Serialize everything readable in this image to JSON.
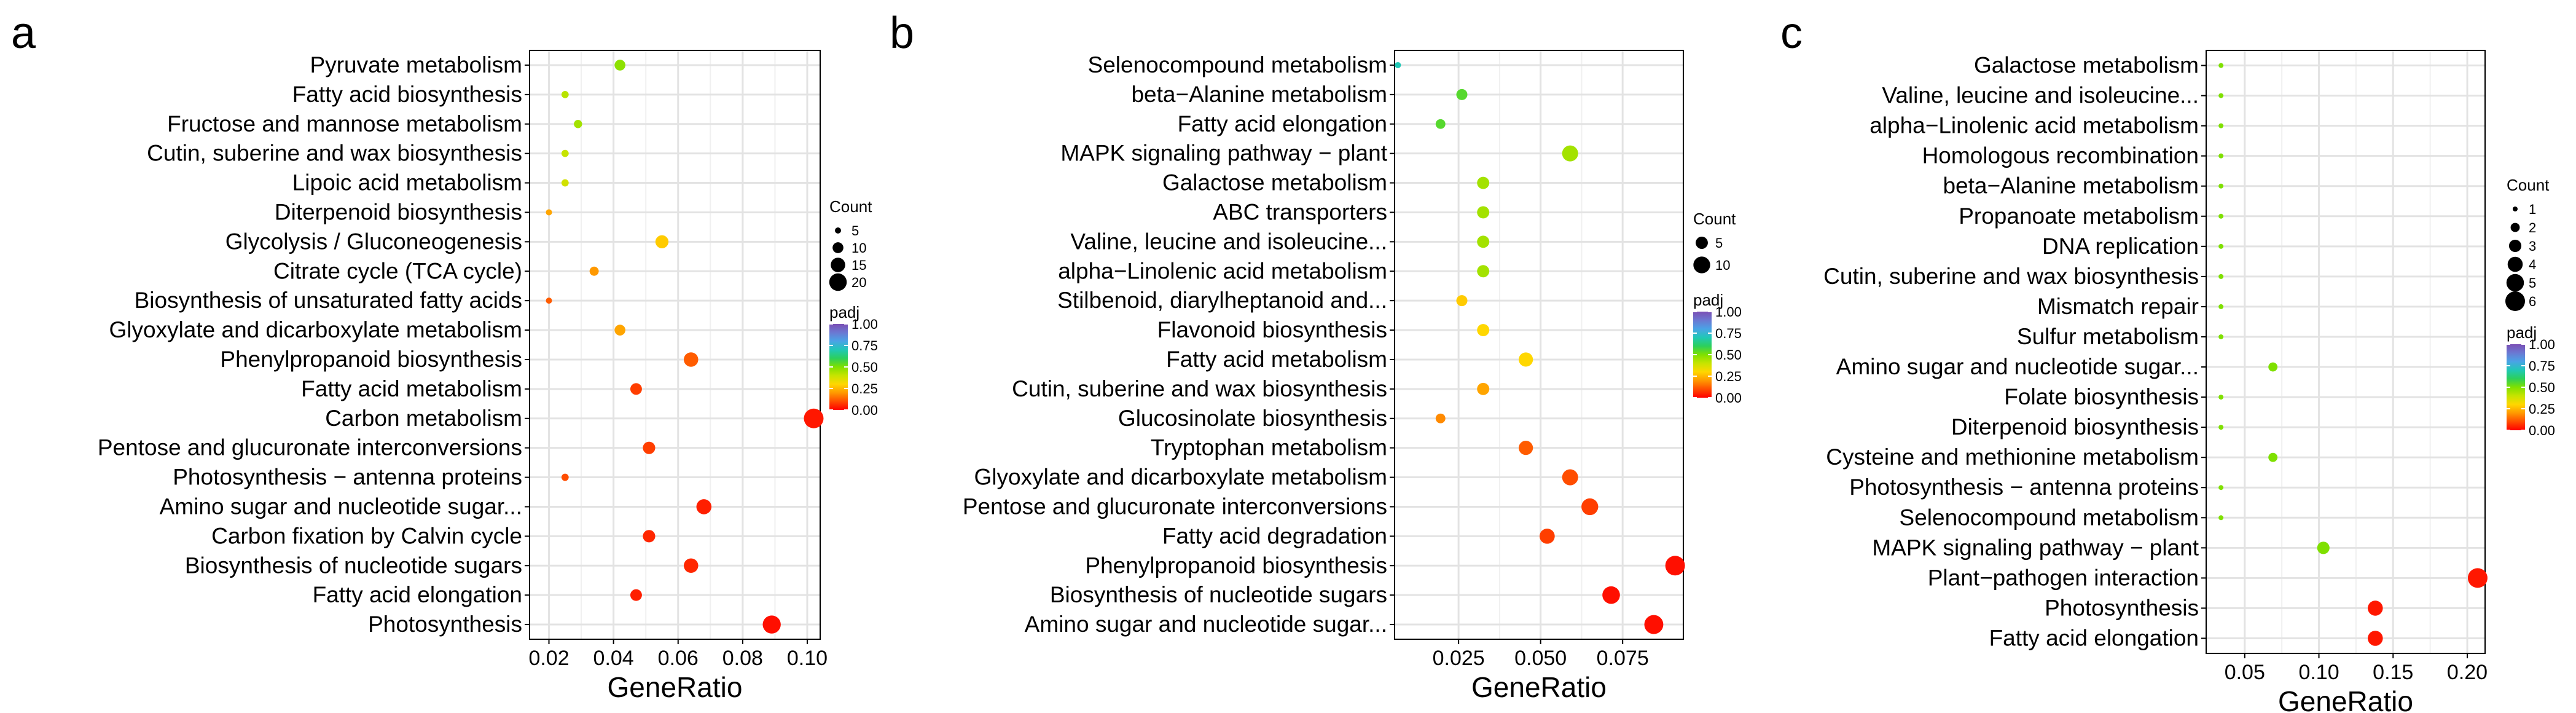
{
  "colorbar": {
    "title": "padj",
    "ticks": [
      "1.00",
      "0.75",
      "0.50",
      "0.25",
      "0.00"
    ],
    "colors": [
      "#ff0000",
      "#ff4d00",
      "#ff9900",
      "#ffd700",
      "#c6e400",
      "#7fe000",
      "#2ccf5c",
      "#20c8b6",
      "#4aa3e6",
      "#6b78d2",
      "#7b4fb5"
    ]
  },
  "chart_data": [
    {
      "type": "scatter",
      "panel": "a",
      "xlabel": "GeneRatio",
      "xlim": [
        0.014,
        0.104
      ],
      "xticks": [
        0.02,
        0.04,
        0.06,
        0.08,
        0.1
      ],
      "xtick_labels": [
        "0.02",
        "0.04",
        "0.06",
        "0.08",
        "0.10"
      ],
      "size_legend": {
        "title": "Count",
        "values": [
          5,
          10,
          15,
          20
        ],
        "labels": [
          "5",
          "10",
          "15",
          "20"
        ]
      },
      "categories": [
        "Pyruvate metabolism",
        "Fatty acid biosynthesis",
        "Fructose and mannose metabolism",
        "Cutin, suberine and wax biosynthesis",
        "Lipoic acid metabolism",
        "Diterpenoid biosynthesis",
        "Glycolysis / Gluconeogenesis",
        "Citrate cycle (TCA cycle)",
        "Biosynthesis of unsaturated fatty acids",
        "Glyoxylate and dicarboxylate metabolism",
        "Phenylpropanoid biosynthesis",
        "Fatty acid metabolism",
        "Carbon metabolism",
        "Pentose and glucuronate interconversions",
        "Photosynthesis − antenna proteins",
        "Amino sugar and nucleotide sugar...",
        "Carbon fixation by Calvin cycle",
        "Biosynthesis of nucleotide sugars",
        "Fatty acid elongation",
        "Photosynthesis"
      ],
      "gene_ratio": [
        0.042,
        0.025,
        0.029,
        0.025,
        0.025,
        0.02,
        0.055,
        0.034,
        0.02,
        0.042,
        0.064,
        0.047,
        0.102,
        0.051,
        0.025,
        0.068,
        0.051,
        0.064,
        0.047,
        0.089
      ],
      "count": [
        10,
        6,
        7,
        6,
        6,
        5,
        13,
        8,
        5,
        10,
        15,
        11,
        24,
        12,
        6,
        16,
        12,
        15,
        11,
        21
      ],
      "padj": [
        0.48,
        0.42,
        0.45,
        0.4,
        0.38,
        0.22,
        0.28,
        0.2,
        0.12,
        0.22,
        0.12,
        0.08,
        0.03,
        0.08,
        0.1,
        0.04,
        0.05,
        0.05,
        0.04,
        0.02
      ]
    },
    {
      "type": "scatter",
      "panel": "b",
      "xlabel": "GeneRatio",
      "xlim": [
        0.0055,
        0.0935
      ],
      "xticks": [
        0.025,
        0.05,
        0.075
      ],
      "xtick_labels": [
        "0.025",
        "0.050",
        "0.075"
      ],
      "size_legend": {
        "title": "Count",
        "values": [
          5,
          10
        ],
        "labels": [
          "5",
          "10"
        ]
      },
      "categories": [
        "Selenocompound metabolism",
        "beta−Alanine metabolism",
        "Fatty acid elongation",
        "MAPK signaling pathway − plant",
        "Galactose metabolism",
        "ABC transporters",
        "Valine, leucine and isoleucine...",
        "alpha−Linolenic acid metabolism",
        "Stilbenoid, diarylheptanoid and...",
        "Flavonoid biosynthesis",
        "Fatty acid metabolism",
        "Cutin, suberine and wax biosynthesis",
        "Glucosinolate biosynthesis",
        "Tryptophan metabolism",
        "Glyoxylate and dicarboxylate metabolism",
        "Pentose and glucuronate interconversions",
        "Fatty acid degradation",
        "Phenylpropanoid biosynthesis",
        "Biosynthesis of nucleotide sugars",
        "Amino sugar and nucleotide sugar..."
      ],
      "gene_ratio": [
        0.0065,
        0.026,
        0.0195,
        0.059,
        0.0325,
        0.0325,
        0.0325,
        0.0325,
        0.026,
        0.0325,
        0.0455,
        0.0325,
        0.0195,
        0.0455,
        0.059,
        0.065,
        0.052,
        0.091,
        0.0715,
        0.0845
      ],
      "count": [
        1,
        4,
        3,
        9,
        5,
        5,
        5,
        5,
        4,
        5,
        7,
        5,
        3,
        7,
        9,
        10,
        8,
        14,
        11,
        13
      ],
      "padj": [
        0.7,
        0.55,
        0.55,
        0.45,
        0.45,
        0.45,
        0.45,
        0.45,
        0.28,
        0.3,
        0.3,
        0.22,
        0.18,
        0.12,
        0.1,
        0.08,
        0.08,
        0.02,
        0.02,
        0.02
      ]
    },
    {
      "type": "scatter",
      "panel": "c",
      "xlabel": "GeneRatio",
      "xlim": [
        0.024,
        0.212
      ],
      "xticks": [
        0.05,
        0.1,
        0.15,
        0.2
      ],
      "xtick_labels": [
        "0.05",
        "0.10",
        "0.15",
        "0.20"
      ],
      "size_legend": {
        "title": "Count",
        "values": [
          1,
          2,
          3,
          4,
          5,
          6
        ],
        "labels": [
          "1",
          "2",
          "3",
          "4",
          "5",
          "6"
        ]
      },
      "categories": [
        "Galactose metabolism",
        "Valine, leucine and isoleucine...",
        "alpha−Linolenic acid metabolism",
        "Homologous recombination",
        "beta−Alanine metabolism",
        "Propanoate metabolism",
        "DNA replication",
        "Cutin, suberine and wax biosynthesis",
        "Mismatch repair",
        "Sulfur metabolism",
        "Amino sugar and nucleotide sugar...",
        "Folate biosynthesis",
        "Diterpenoid biosynthesis",
        "Cysteine and methionine metabolism",
        "Photosynthesis − antenna proteins",
        "Selenocompound metabolism",
        "MAPK signaling pathway − plant",
        "Plant−pathogen interaction",
        "Photosynthesis",
        "Fatty acid elongation"
      ],
      "gene_ratio": [
        0.034,
        0.034,
        0.034,
        0.034,
        0.034,
        0.034,
        0.034,
        0.034,
        0.034,
        0.034,
        0.069,
        0.034,
        0.034,
        0.069,
        0.034,
        0.034,
        0.103,
        0.207,
        0.138,
        0.138
      ],
      "count": [
        1,
        1,
        1,
        1,
        1,
        1,
        1,
        1,
        1,
        1,
        2,
        1,
        1,
        2,
        1,
        1,
        3,
        6,
        4,
        4
      ],
      "padj": [
        0.5,
        0.5,
        0.5,
        0.5,
        0.5,
        0.5,
        0.5,
        0.5,
        0.5,
        0.5,
        0.5,
        0.5,
        0.5,
        0.5,
        0.5,
        0.5,
        0.5,
        0.03,
        0.03,
        0.03
      ]
    }
  ],
  "panel_labels": [
    "a",
    "b",
    "c"
  ]
}
